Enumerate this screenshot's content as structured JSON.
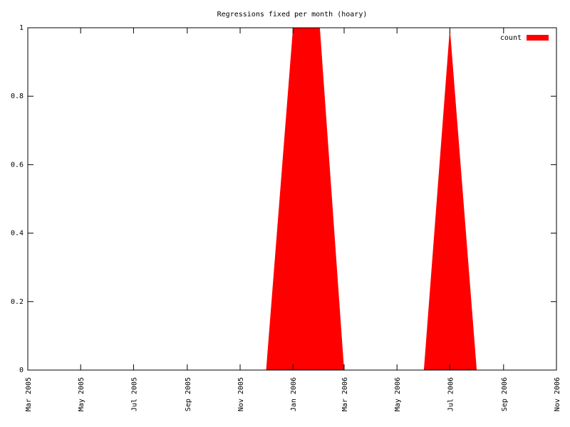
{
  "chart_data": {
    "type": "area",
    "title": "Regressions fixed per month (hoary)",
    "x": [
      "2005-03",
      "2005-04",
      "2005-05",
      "2005-06",
      "2005-07",
      "2005-08",
      "2005-09",
      "2005-10",
      "2005-11",
      "2005-12",
      "2006-01",
      "2006-02",
      "2006-03",
      "2006-04",
      "2006-05",
      "2006-06",
      "2006-07",
      "2006-08",
      "2006-09",
      "2006-10",
      "2006-11"
    ],
    "series": [
      {
        "name": "count",
        "color": "#ff0000",
        "values": [
          0,
          0,
          0,
          0,
          0,
          0,
          0,
          0,
          0,
          0,
          1,
          1,
          0,
          0,
          0,
          0,
          1,
          0,
          0,
          0,
          0
        ]
      }
    ],
    "xlim": [
      "2005-03",
      "2006-11"
    ],
    "xticks": [
      {
        "value": "2005-03",
        "label": "Mar 2005"
      },
      {
        "value": "2005-05",
        "label": "May 2005"
      },
      {
        "value": "2005-07",
        "label": "Jul 2005"
      },
      {
        "value": "2005-09",
        "label": "Sep 2005"
      },
      {
        "value": "2005-11",
        "label": "Nov 2005"
      },
      {
        "value": "2006-01",
        "label": "Jan 2006"
      },
      {
        "value": "2006-03",
        "label": "Mar 2006"
      },
      {
        "value": "2006-05",
        "label": "May 2006"
      },
      {
        "value": "2006-07",
        "label": "Jul 2006"
      },
      {
        "value": "2006-09",
        "label": "Sep 2006"
      },
      {
        "value": "2006-11",
        "label": "Nov 2006"
      }
    ],
    "ylim": [
      0,
      1
    ],
    "yticks": [
      0,
      0.2,
      0.4,
      0.6,
      0.8,
      1
    ],
    "legend": "top-right"
  }
}
